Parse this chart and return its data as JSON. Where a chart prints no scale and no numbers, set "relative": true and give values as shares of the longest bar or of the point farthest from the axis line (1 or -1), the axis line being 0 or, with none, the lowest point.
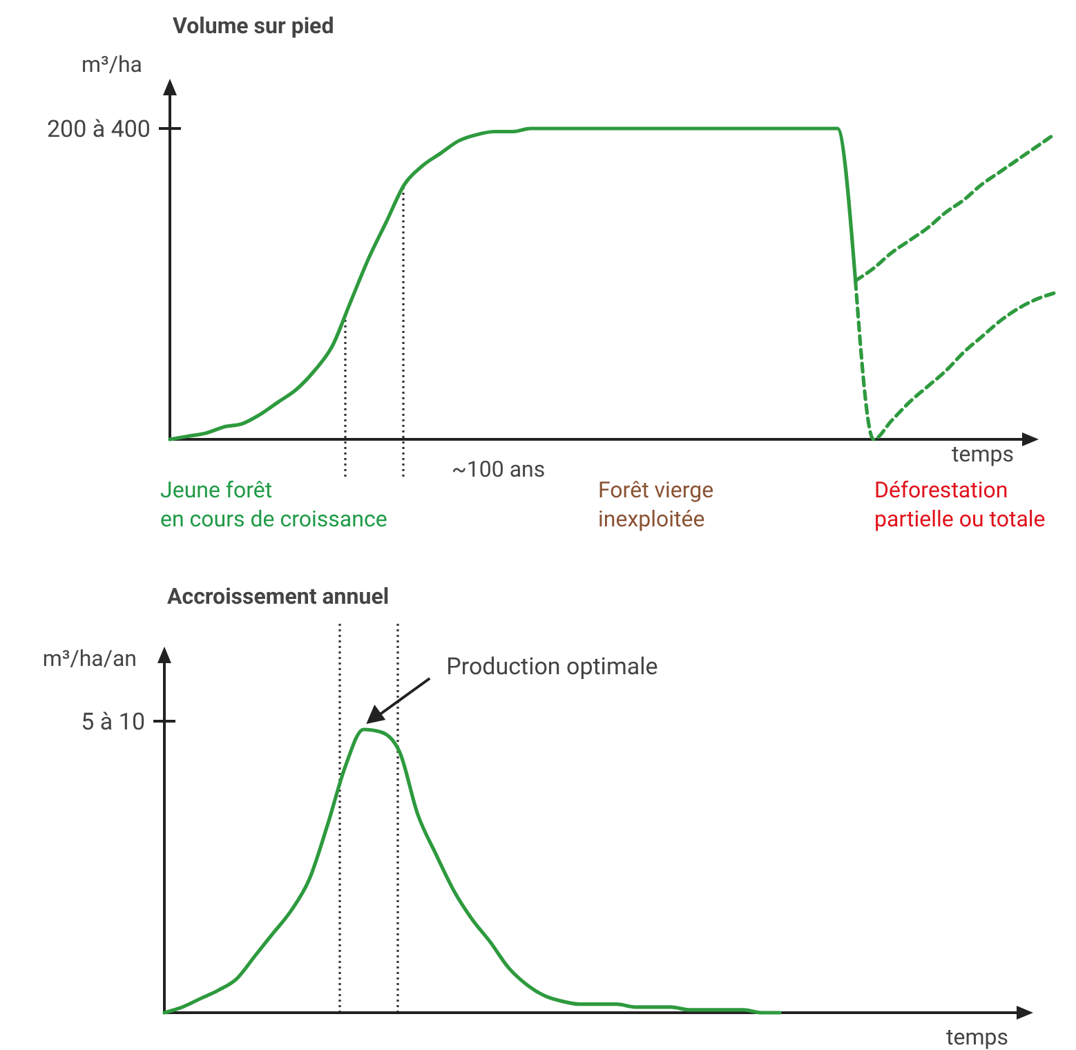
{
  "chart_data": [
    {
      "type": "line",
      "title": "Volume sur pied",
      "ylabel": "m³/ha",
      "xlabel": "temps",
      "relative": true,
      "line_style": "solid",
      "marker": "none",
      "categories": [
        null,
        null,
        null,
        null,
        null,
        null,
        null,
        null,
        null,
        null,
        null,
        null,
        null,
        null,
        null,
        null,
        null,
        null,
        null,
        null,
        null,
        null,
        null,
        null,
        null,
        null,
        null,
        null,
        null,
        null,
        null,
        null,
        null,
        null,
        null,
        null,
        null,
        null,
        null,
        null,
        null,
        null,
        null,
        null,
        null,
        null,
        null,
        null,
        null,
        null
      ],
      "series": [
        {
          "color": "#2e9a3e",
          "values": [
            0,
            0.01,
            0.02,
            0.04,
            0.05,
            0.08,
            0.12,
            0.16,
            0.22,
            0.3,
            0.44,
            0.58,
            0.7,
            0.82,
            0.88,
            0.92,
            0.96,
            0.98,
            0.99,
            0.99,
            1,
            1,
            1,
            1,
            1,
            1,
            1,
            1,
            1,
            1,
            1,
            1,
            1,
            1,
            1,
            1,
            1,
            1,
            0.51,
            null,
            null,
            null,
            null,
            null,
            null,
            null,
            null,
            null,
            null,
            null
          ]
        },
        {
          "color": "#2e9a3e",
          "line_style": "dashed",
          "values": [
            null,
            null,
            null,
            null,
            null,
            null,
            null,
            null,
            null,
            null,
            null,
            null,
            null,
            null,
            null,
            null,
            null,
            null,
            null,
            null,
            null,
            null,
            null,
            null,
            null,
            null,
            null,
            null,
            null,
            null,
            null,
            null,
            null,
            null,
            null,
            null,
            null,
            null,
            0.51,
            0.55,
            0.6,
            0.64,
            0.68,
            0.73,
            0.77,
            0.82,
            0.86,
            0.9,
            0.94,
            0.98
          ]
        },
        {
          "color": "#2e9a3e",
          "line_style": "dashed",
          "values": [
            null,
            null,
            null,
            null,
            null,
            null,
            null,
            null,
            null,
            null,
            null,
            null,
            null,
            null,
            null,
            null,
            null,
            null,
            null,
            null,
            null,
            null,
            null,
            null,
            null,
            null,
            null,
            null,
            null,
            null,
            null,
            null,
            null,
            null,
            null,
            null,
            null,
            null,
            0.51,
            0,
            0.06,
            0.12,
            0.17,
            0.22,
            0.28,
            0.33,
            0.38,
            0.42,
            0.45,
            0.47
          ]
        }
      ],
      "annotations": [
        "200 à 400",
        "~100 ans",
        "Jeune forêt\nen cours de croissance",
        "Forêt vierge\ninexploitée",
        "Déforestation\npartielle ou totale"
      ]
    },
    {
      "type": "line",
      "title": "Accroissement annuel",
      "ylabel": "m³/ha/an",
      "xlabel": "temps",
      "relative": true,
      "line_style": "solid",
      "marker": "none",
      "categories": [
        null,
        null,
        null,
        null,
        null,
        null,
        null,
        null,
        null,
        null,
        null,
        null,
        null,
        null,
        null,
        null,
        null,
        null,
        null,
        null,
        null,
        null,
        null,
        null,
        null,
        null,
        null,
        null,
        null,
        null,
        null,
        null,
        null,
        null,
        null,
        null,
        null,
        null,
        null,
        null,
        null,
        null,
        null,
        null,
        null,
        null,
        null,
        null,
        null
      ],
      "series": [
        {
          "color": "#2e9a3e",
          "values": [
            0,
            0.02,
            0.05,
            0.08,
            0.12,
            0.2,
            0.28,
            0.36,
            0.47,
            0.66,
            0.87,
            1,
            0.99,
            0.92,
            0.7,
            0.56,
            0.43,
            0.33,
            0.25,
            0.16,
            0.1,
            0.06,
            0.04,
            0.03,
            0.03,
            0.03,
            0.02,
            0.02,
            0.02,
            0.01,
            0.01,
            0.01,
            0.01,
            0,
            0,
            null,
            null,
            null,
            null,
            null,
            null,
            null,
            null,
            null,
            null,
            null,
            null,
            null,
            null
          ]
        }
      ],
      "annotations": [
        "5 à 10",
        "Production optimale"
      ]
    }
  ]
}
